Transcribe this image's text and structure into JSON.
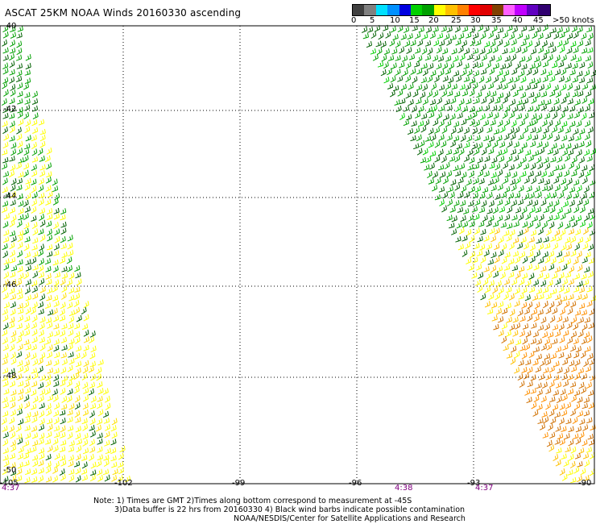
{
  "title": "ASCAT 25KM NOAA Winds 20160330 ascending",
  "legend": {
    "colors": [
      "#404040",
      "#808080",
      "#00e0ff",
      "#0090ff",
      "#0000e0",
      "#00d000",
      "#00a000",
      "#ffff00",
      "#ffc000",
      "#ff8000",
      "#ff0000",
      "#e00000",
      "#804000",
      "#ff60ff",
      "#c000ff",
      "#6000c0",
      "#300070"
    ],
    "labels": [
      "0",
      "5",
      "10",
      "15",
      "20",
      "25",
      "30",
      "35",
      "40",
      "45",
      ">50 knots"
    ]
  },
  "grid": {
    "lat_labels": [
      "-40",
      "-42",
      "-44",
      "-46",
      "-48",
      "-50"
    ],
    "lon_labels": [
      "-105",
      "-102",
      "-99",
      "-96",
      "-93",
      "-90"
    ],
    "times": [
      "4:37",
      "4:38",
      "4:37"
    ]
  },
  "notes": {
    "line1": "Note: 1) Times are GMT 2)Times along bottom correspond to measurement at -45S",
    "line2": "3)Data buffer is 22 hrs from 20160330 4) Black wind barbs indicate possible contamination",
    "line3": "NOAA/NESDIS/Center for Satellite Applications and Research"
  }
}
